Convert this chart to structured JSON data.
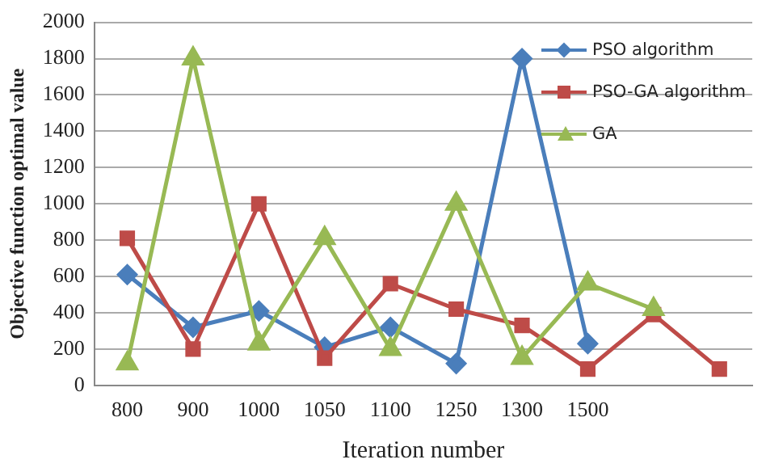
{
  "chart_data": {
    "type": "line",
    "xlabel": "Iteration number",
    "ylabel": "Objective function optimal value",
    "categories": [
      "800",
      "900",
      "1000",
      "1050",
      "1100",
      "1250",
      "1300",
      "1500",
      null,
      null
    ],
    "series": [
      {
        "name": "PSO algorithm",
        "color": "#4a7ebb",
        "marker": "diamond",
        "values": [
          610,
          320,
          410,
          210,
          320,
          120,
          1800,
          230,
          null,
          null
        ]
      },
      {
        "name": "PSO-GA algorithm",
        "color": "#be4b48",
        "marker": "square",
        "values": [
          810,
          200,
          1000,
          150,
          560,
          420,
          330,
          90,
          390,
          90
        ]
      },
      {
        "name": "GA",
        "color": "#98b954",
        "marker": "triangle",
        "values": [
          120,
          1800,
          230,
          810,
          200,
          1000,
          150,
          560,
          420,
          null
        ]
      }
    ],
    "ylim": [
      0,
      2000
    ],
    "yticks": [
      0,
      200,
      400,
      600,
      800,
      1000,
      1200,
      1400,
      1600,
      1800,
      2000
    ],
    "grid": "y",
    "legend": "top right",
    "line_style": "solid"
  }
}
